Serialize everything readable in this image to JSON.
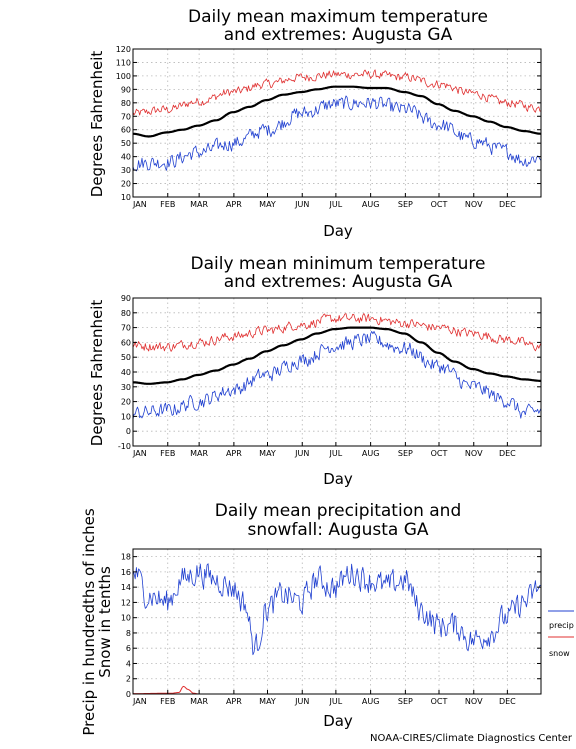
{
  "credit": "NOAA-CIRES/Climate Diagnostics Center",
  "months": [
    "JAN",
    "FEB",
    "MAR",
    "APR",
    "MAY",
    "JUN",
    "JUL",
    "AUG",
    "SEP",
    "OCT",
    "NOV",
    "DEC"
  ],
  "colors": {
    "mean": "#000000",
    "max_ext": "#e03030",
    "min_ext": "#2040d0",
    "precip": "#2040d0",
    "snow": "#e03030",
    "grid": "#b8b8b8"
  },
  "chart_data": [
    {
      "type": "line",
      "title_lines": [
        "Daily mean maximum temperature",
        "and extremes: Augusta GA"
      ],
      "xlabel": "Day",
      "ylabel": "Degrees Fahrenheit",
      "ylim": [
        10,
        120
      ],
      "yticks": [
        10,
        20,
        30,
        40,
        50,
        60,
        70,
        80,
        90,
        100,
        110,
        120
      ],
      "grid": true,
      "series": [
        {
          "key": "high",
          "anchors": [
            [
              1,
              72
            ],
            [
              31,
              75
            ],
            [
              59,
              81
            ],
            [
              90,
              88
            ],
            [
              120,
              94
            ],
            [
              151,
              99
            ],
            [
              181,
              101
            ],
            [
              212,
              101
            ],
            [
              243,
              99
            ],
            [
              273,
              94
            ],
            [
              304,
              87
            ],
            [
              334,
              80
            ],
            [
              365,
              76
            ]
          ],
          "noise": 3.0
        },
        {
          "key": "mean",
          "anchors": [
            [
              1,
              57
            ],
            [
              15,
              55
            ],
            [
              31,
              58
            ],
            [
              45,
              60
            ],
            [
              59,
              63
            ],
            [
              75,
              67
            ],
            [
              90,
              73
            ],
            [
              105,
              77
            ],
            [
              120,
              82
            ],
            [
              135,
              86
            ],
            [
              151,
              88
            ],
            [
              165,
              90
            ],
            [
              181,
              92
            ],
            [
              196,
              92
            ],
            [
              212,
              91
            ],
            [
              227,
              91
            ],
            [
              243,
              88
            ],
            [
              258,
              85
            ],
            [
              273,
              79
            ],
            [
              288,
              74
            ],
            [
              304,
              70
            ],
            [
              319,
              66
            ],
            [
              334,
              62
            ],
            [
              350,
              59
            ],
            [
              365,
              57
            ]
          ],
          "noise": 0
        },
        {
          "key": "low",
          "anchors": [
            [
              1,
              35
            ],
            [
              31,
              36
            ],
            [
              59,
              43
            ],
            [
              90,
              50
            ],
            [
              120,
              60
            ],
            [
              151,
              72
            ],
            [
              181,
              79
            ],
            [
              212,
              80
            ],
            [
              243,
              75
            ],
            [
              273,
              64
            ],
            [
              304,
              52
            ],
            [
              334,
              44
            ],
            [
              350,
              37
            ],
            [
              365,
              40
            ]
          ],
          "noise": 5.0
        }
      ]
    },
    {
      "type": "line",
      "title_lines": [
        "Daily mean minimum temperature",
        "and extremes: Augusta GA"
      ],
      "xlabel": "Day",
      "ylabel": "Degrees Fahrenheit",
      "ylim": [
        -10,
        90
      ],
      "yticks": [
        -10,
        0,
        10,
        20,
        30,
        40,
        50,
        60,
        70,
        80,
        90
      ],
      "grid": true,
      "series": [
        {
          "key": "high",
          "anchors": [
            [
              1,
              58
            ],
            [
              31,
              57
            ],
            [
              59,
              60
            ],
            [
              90,
              64
            ],
            [
              120,
              68
            ],
            [
              151,
              72
            ],
            [
              181,
              76
            ],
            [
              212,
              76
            ],
            [
              243,
              73
            ],
            [
              273,
              70
            ],
            [
              304,
              66
            ],
            [
              334,
              62
            ],
            [
              365,
              57
            ]
          ],
          "noise": 3.0
        },
        {
          "key": "mean",
          "anchors": [
            [
              1,
              33
            ],
            [
              15,
              32
            ],
            [
              31,
              33
            ],
            [
              45,
              35
            ],
            [
              59,
              38
            ],
            [
              75,
              41
            ],
            [
              90,
              45
            ],
            [
              105,
              49
            ],
            [
              120,
              54
            ],
            [
              135,
              58
            ],
            [
              151,
              62
            ],
            [
              165,
              66
            ],
            [
              181,
              69
            ],
            [
              196,
              70
            ],
            [
              212,
              70
            ],
            [
              227,
              69
            ],
            [
              243,
              66
            ],
            [
              258,
              60
            ],
            [
              273,
              53
            ],
            [
              288,
              47
            ],
            [
              304,
              42
            ],
            [
              319,
              39
            ],
            [
              334,
              37
            ],
            [
              350,
              35
            ],
            [
              365,
              34
            ]
          ],
          "noise": 0
        },
        {
          "key": "low",
          "anchors": [
            [
              1,
              12
            ],
            [
              31,
              14
            ],
            [
              59,
              20
            ],
            [
              90,
              28
            ],
            [
              120,
              38
            ],
            [
              151,
              48
            ],
            [
              181,
              58
            ],
            [
              212,
              62
            ],
            [
              243,
              56
            ],
            [
              273,
              44
            ],
            [
              304,
              30
            ],
            [
              334,
              21
            ],
            [
              350,
              12
            ],
            [
              365,
              14
            ]
          ],
          "noise": 4.5
        }
      ]
    },
    {
      "type": "line",
      "title_lines": [
        "Daily mean precipitation and",
        "snowfall: Augusta GA"
      ],
      "xlabel": "Day",
      "ylabel_lines": [
        "Precip in hundredths of inches",
        "Snow in tenths"
      ],
      "ylim": [
        0,
        19
      ],
      "yticks": [
        0,
        2,
        4,
        6,
        8,
        10,
        12,
        14,
        16,
        18
      ],
      "grid": true,
      "legend": [
        "precip",
        "snow"
      ],
      "legend_position": "right",
      "series": [
        {
          "key": "precip",
          "anchors": [
            [
              1,
              16
            ],
            [
              15,
              13
            ],
            [
              31,
              12
            ],
            [
              45,
              15
            ],
            [
              59,
              16
            ],
            [
              75,
              15
            ],
            [
              90,
              14
            ],
            [
              100,
              12
            ],
            [
              110,
              6
            ],
            [
              120,
              11
            ],
            [
              135,
              13
            ],
            [
              151,
              12
            ],
            [
              165,
              15
            ],
            [
              181,
              14
            ],
            [
              196,
              16
            ],
            [
              212,
              15
            ],
            [
              227,
              14
            ],
            [
              243,
              15
            ],
            [
              258,
              11
            ],
            [
              273,
              9
            ],
            [
              288,
              9
            ],
            [
              304,
              7
            ],
            [
              319,
              8
            ],
            [
              334,
              10
            ],
            [
              350,
              12
            ],
            [
              365,
              14
            ]
          ],
          "noise": 1.6
        },
        {
          "key": "snow",
          "anchors": [
            [
              1,
              0.05
            ],
            [
              35,
              0.1
            ],
            [
              42,
              0.2
            ],
            [
              46,
              1.0
            ],
            [
              50,
              0.6
            ],
            [
              55,
              0.1
            ],
            [
              60,
              0
            ],
            [
              365,
              0
            ]
          ],
          "noise": 0
        }
      ]
    }
  ]
}
